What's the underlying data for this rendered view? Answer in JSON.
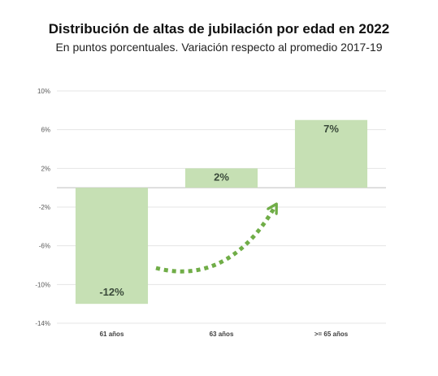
{
  "chart_data": {
    "type": "bar",
    "title": "Distribución de altas de jubilación por edad en 2022",
    "subtitle": "En puntos porcentuales. Variación respecto al promedio 2017-19",
    "categories": [
      "61 años",
      "63 años",
      ">= 65 años"
    ],
    "values": [
      -12,
      2,
      7
    ],
    "data_labels": [
      "-12%",
      "2%",
      "7%"
    ],
    "ylim": [
      -14,
      10
    ],
    "yticks": [
      10,
      6,
      2,
      -2,
      -6,
      -10,
      -14
    ],
    "ytick_labels": [
      "10%",
      "6%",
      "2%",
      "-2%",
      "-6%",
      "-10%",
      "-14%"
    ],
    "xlabel": "",
    "ylabel": "",
    "grid": true,
    "annotation": "dotted curved arrow from first bar toward second bar",
    "colors": {
      "bar": "#c6e0b4",
      "grid": "#e4e4e4",
      "zero_line": "#bfbfbf",
      "arrow": "#70ad47"
    }
  }
}
